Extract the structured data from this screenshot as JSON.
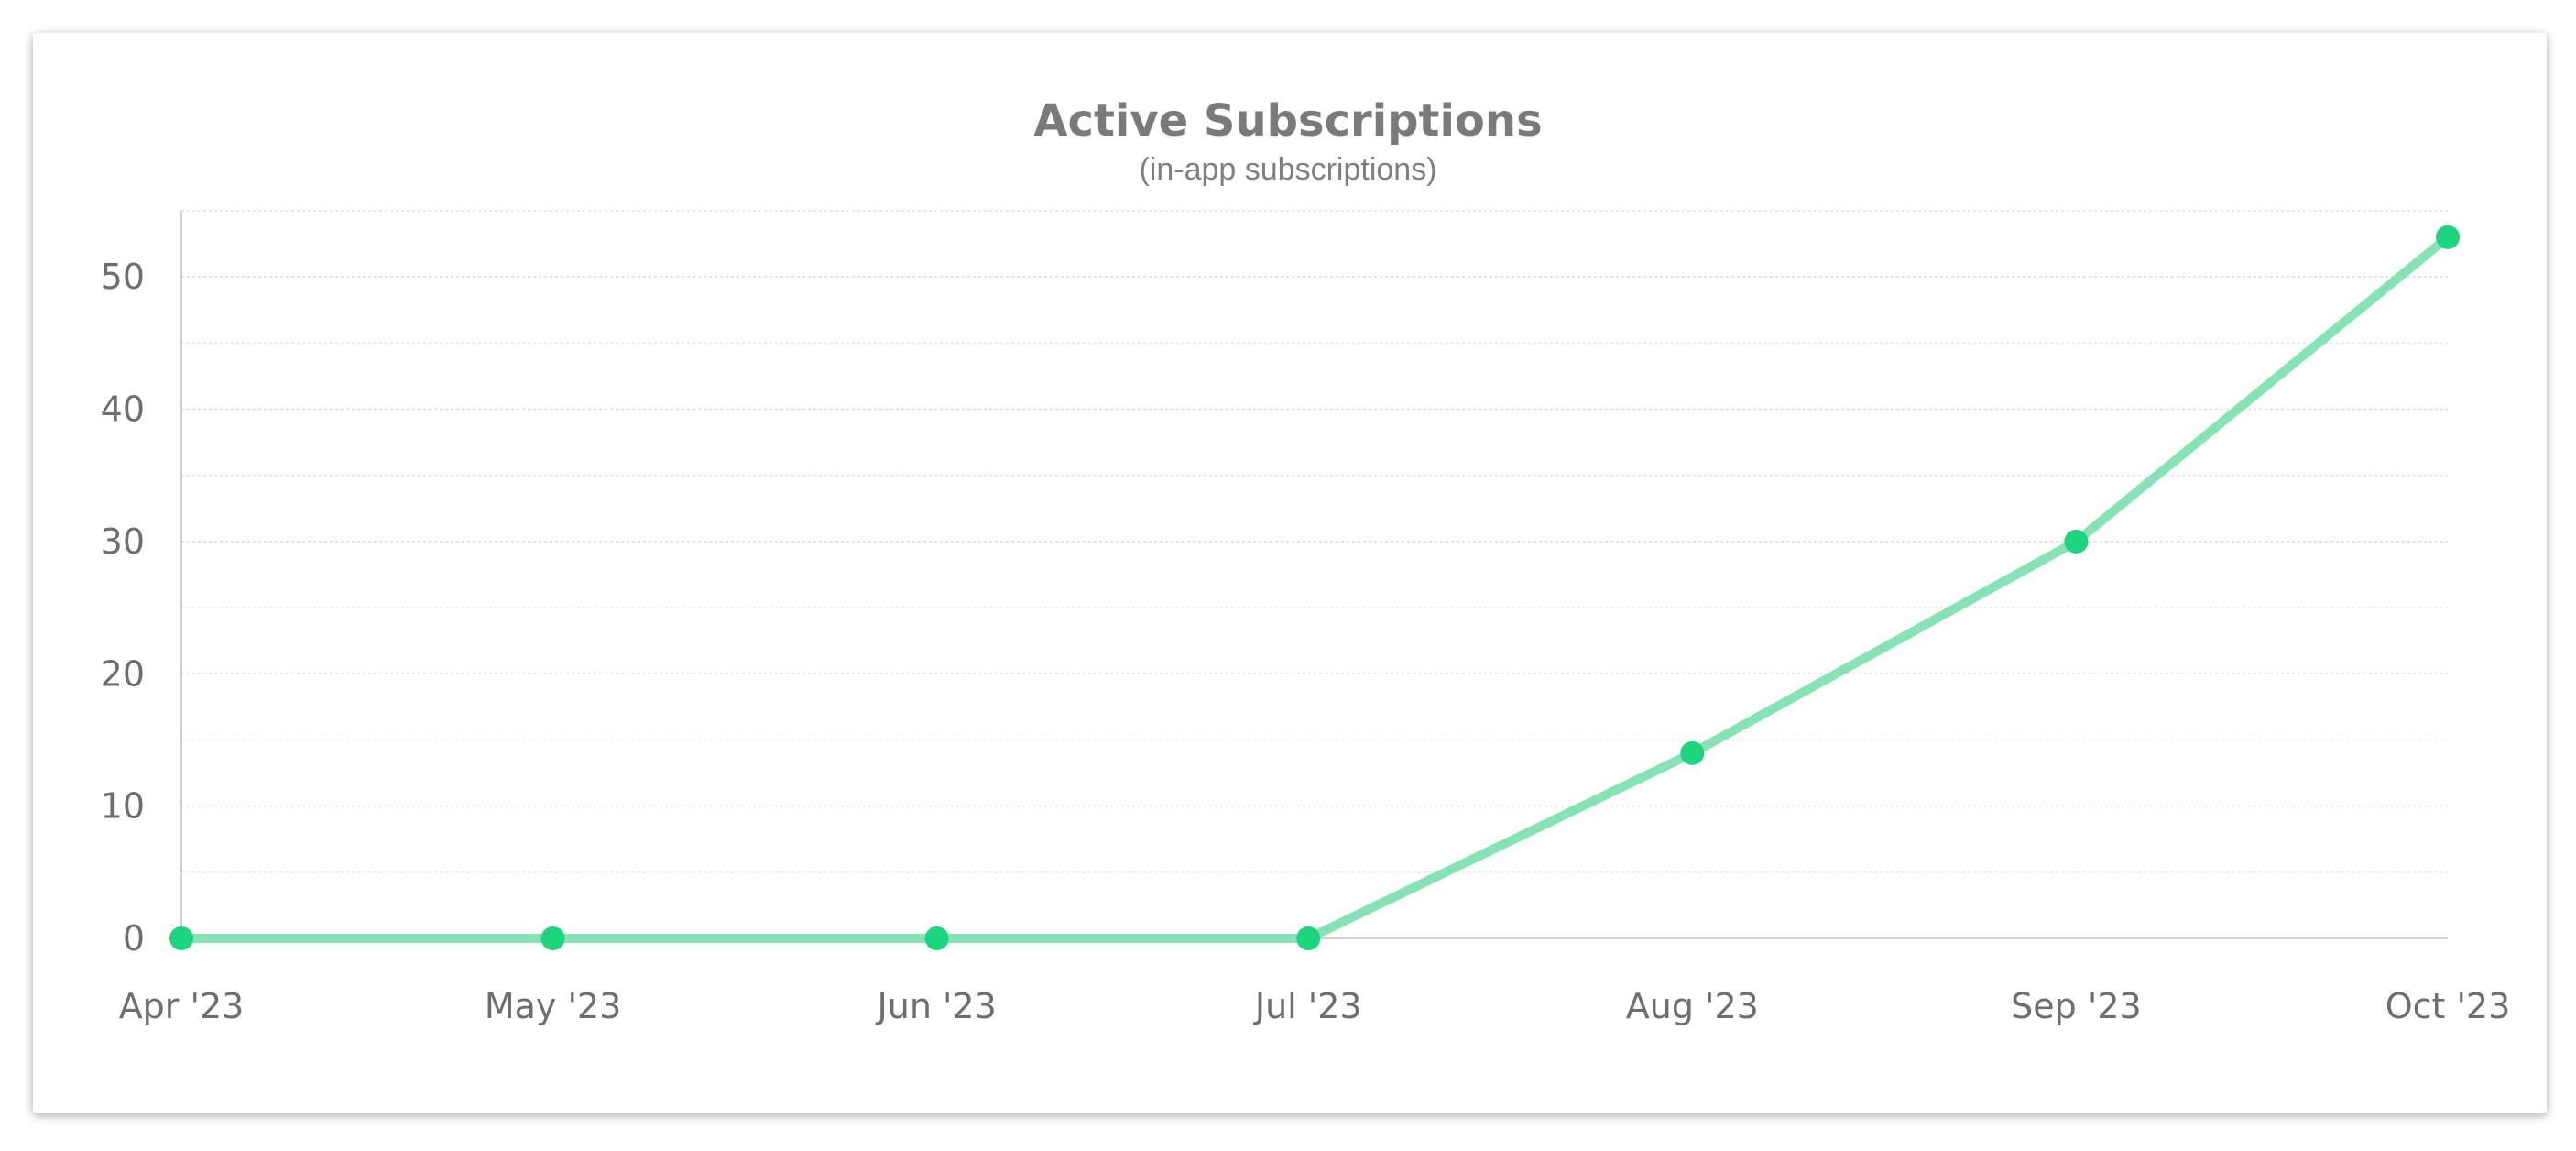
{
  "chart_data": {
    "type": "line",
    "title": "Active Subscriptions",
    "subtitle": "(in-app subscriptions)",
    "xlabel": "",
    "ylabel": "",
    "categories": [
      "Apr '23",
      "May '23",
      "Jun '23",
      "Jul '23",
      "Aug '23",
      "Sep '23",
      "Oct '23"
    ],
    "x_ticks_days_note": "x positions follow calendar months",
    "series": [
      {
        "values": [
          0,
          0,
          0,
          0,
          14,
          30,
          53
        ]
      }
    ],
    "yticks": [
      "0",
      "10",
      "20",
      "30",
      "40",
      "50"
    ],
    "ylim": [
      0,
      55
    ],
    "grid": true,
    "legend": "none",
    "colors": {
      "line": "#85e3b6",
      "marker": "#1dd47f"
    }
  }
}
